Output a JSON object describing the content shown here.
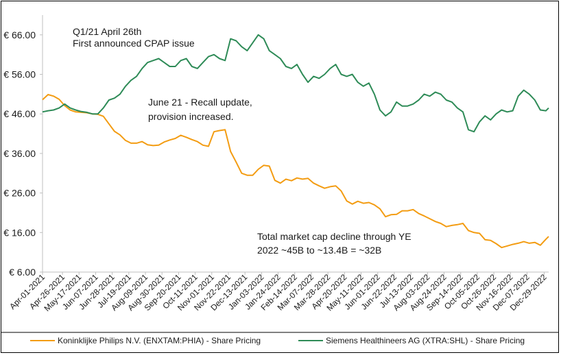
{
  "chart_data": {
    "type": "line",
    "ylim": [
      6,
      71
    ],
    "y_ticks": [
      6,
      16,
      26,
      36,
      46,
      56,
      66
    ],
    "y_tick_labels": [
      "€ 6.00",
      "€ 16.00",
      "€ 26.00",
      "€ 36.00",
      "€ 46.00",
      "€ 56.00",
      "€ 66.00"
    ],
    "x_tick_labels": [
      "Apr-01-2021",
      "Apr-26-2021",
      "May-17-2021",
      "Jun-07-2021",
      "Jun-28-2021",
      "Jul-19-2021",
      "Aug-09-2021",
      "Aug-30-2021",
      "Sep-20-2021",
      "Oct-11-2021",
      "Nov-01-2021",
      "Nov-22-2021",
      "Dec-13-2021",
      "Jan-03-2022",
      "Jan-24-2022",
      "Feb-14-2022",
      "Mar-07-2022",
      "Mar-28-2022",
      "Apr-20-2022",
      "May-11-2022",
      "Jun-01-2022",
      "Jun-22-2022",
      "Jul-13-2022",
      "Aug-03-2022",
      "Aug-24-2022",
      "Sep-14-2022",
      "Oct-05-2022",
      "Oct-26-2022",
      "Nov-16-2022",
      "Dec-07-2022",
      "Dec-29-2022"
    ],
    "x_weeks": [
      0,
      3.6,
      6.6,
      9.6,
      12.6,
      15.6,
      18.6,
      21.6,
      24.6,
      27.6,
      30.6,
      33.6,
      36.6,
      39.6,
      42.6,
      45.6,
      48.6,
      51.6,
      54.6,
      57.6,
      60.6,
      63.6,
      66.6,
      69.6,
      72.6,
      75.6,
      78.6,
      81.6,
      84.6,
      87.6,
      90.7
    ],
    "x_range": [
      0,
      91.5
    ],
    "series": [
      {
        "name": "Koninklijke Philips N.V. (ENXTAM:PHIA) - Share Pricing",
        "color": "#F39C12",
        "points": [
          [
            0,
            49.6
          ],
          [
            1,
            50.9
          ],
          [
            2,
            50.5
          ],
          [
            3,
            49.7
          ],
          [
            4,
            48.1
          ],
          [
            5,
            47.0
          ],
          [
            6,
            46.5
          ],
          [
            7,
            46.4
          ],
          [
            8,
            46.3
          ],
          [
            9,
            46.0
          ],
          [
            10,
            45.9
          ],
          [
            11,
            45.4
          ],
          [
            12,
            43.5
          ],
          [
            13,
            41.6
          ],
          [
            14,
            40.7
          ],
          [
            15,
            39.3
          ],
          [
            16,
            38.6
          ],
          [
            17,
            38.6
          ],
          [
            18,
            39.0
          ],
          [
            19,
            38.2
          ],
          [
            20,
            38.0
          ],
          [
            21,
            38.1
          ],
          [
            22,
            38.9
          ],
          [
            23,
            39.4
          ],
          [
            24,
            39.8
          ],
          [
            25,
            40.6
          ],
          [
            26,
            40.1
          ],
          [
            27,
            39.5
          ],
          [
            28,
            39.0
          ],
          [
            29,
            38.1
          ],
          [
            30,
            37.8
          ],
          [
            31,
            41.5
          ],
          [
            32,
            41.8
          ],
          [
            33,
            42.0
          ],
          [
            34,
            36.5
          ],
          [
            35,
            33.8
          ],
          [
            36,
            31.0
          ],
          [
            37,
            30.5
          ],
          [
            38,
            30.5
          ],
          [
            39,
            32.0
          ],
          [
            40,
            33.0
          ],
          [
            41,
            32.8
          ],
          [
            42,
            29.2
          ],
          [
            43,
            28.5
          ],
          [
            44,
            29.5
          ],
          [
            45,
            29.1
          ],
          [
            46,
            29.8
          ],
          [
            47,
            29.5
          ],
          [
            48,
            29.7
          ],
          [
            49,
            28.5
          ],
          [
            50,
            27.8
          ],
          [
            51,
            27.2
          ],
          [
            52,
            27.6
          ],
          [
            53,
            27.8
          ],
          [
            54,
            26.5
          ],
          [
            55,
            24.0
          ],
          [
            56,
            23.2
          ],
          [
            57,
            23.9
          ],
          [
            58,
            23.4
          ],
          [
            59,
            23.6
          ],
          [
            60,
            23.0
          ],
          [
            61,
            22.0
          ],
          [
            62,
            20.0
          ],
          [
            63,
            20.5
          ],
          [
            64,
            20.6
          ],
          [
            65,
            21.5
          ],
          [
            66,
            21.5
          ],
          [
            67,
            21.8
          ],
          [
            68,
            20.8
          ],
          [
            69,
            20.2
          ],
          [
            70,
            19.5
          ],
          [
            71,
            18.8
          ],
          [
            72,
            18.3
          ],
          [
            73,
            17.5
          ],
          [
            74,
            17.8
          ],
          [
            75,
            18.0
          ],
          [
            76,
            18.3
          ],
          [
            77,
            16.5
          ],
          [
            78,
            16.0
          ],
          [
            79,
            15.8
          ],
          [
            80,
            14.2
          ],
          [
            81,
            14.0
          ],
          [
            82,
            13.2
          ],
          [
            83,
            12.2
          ],
          [
            84,
            12.6
          ],
          [
            85,
            13.0
          ],
          [
            86,
            13.3
          ],
          [
            87,
            13.7
          ],
          [
            88,
            13.3
          ],
          [
            89,
            13.5
          ],
          [
            90,
            12.8
          ],
          [
            91,
            14.3
          ],
          [
            91.5,
            15.0
          ]
        ]
      },
      {
        "name": "Siemens Healthineers AG (XTRA:SHL) - Share Pricing",
        "color": "#2E8B57",
        "points": [
          [
            0,
            46.5
          ],
          [
            1,
            46.8
          ],
          [
            2,
            47.0
          ],
          [
            3,
            47.5
          ],
          [
            4,
            48.5
          ],
          [
            5,
            47.5
          ],
          [
            6,
            47.0
          ],
          [
            7,
            46.6
          ],
          [
            8,
            46.4
          ],
          [
            9,
            46.0
          ],
          [
            10,
            46.0
          ],
          [
            11,
            47.5
          ],
          [
            12,
            49.5
          ],
          [
            13,
            50.0
          ],
          [
            14,
            51.0
          ],
          [
            15,
            53.0
          ],
          [
            16,
            54.5
          ],
          [
            17,
            55.5
          ],
          [
            18,
            57.5
          ],
          [
            19,
            59.0
          ],
          [
            20,
            59.5
          ],
          [
            21,
            60.0
          ],
          [
            22,
            59.0
          ],
          [
            23,
            58.0
          ],
          [
            24,
            58.0
          ],
          [
            25,
            59.5
          ],
          [
            26,
            60.0
          ],
          [
            27,
            58.0
          ],
          [
            28,
            57.5
          ],
          [
            29,
            59.0
          ],
          [
            30,
            60.5
          ],
          [
            31,
            61.0
          ],
          [
            32,
            60.0
          ],
          [
            33,
            59.5
          ],
          [
            34,
            65.0
          ],
          [
            35,
            64.5
          ],
          [
            36,
            63.0
          ],
          [
            37,
            62.0
          ],
          [
            38,
            64.0
          ],
          [
            39,
            66.0
          ],
          [
            40,
            65.0
          ],
          [
            41,
            62.0
          ],
          [
            42,
            61.0
          ],
          [
            43,
            60.0
          ],
          [
            44,
            58.0
          ],
          [
            45,
            57.5
          ],
          [
            46,
            58.5
          ],
          [
            47,
            56.0
          ],
          [
            48,
            54.0
          ],
          [
            49,
            55.5
          ],
          [
            50,
            55.0
          ],
          [
            51,
            56.0
          ],
          [
            52,
            57.5
          ],
          [
            53,
            58.5
          ],
          [
            54,
            56.0
          ],
          [
            55,
            55.5
          ],
          [
            56,
            56.0
          ],
          [
            57,
            54.0
          ],
          [
            58,
            53.0
          ],
          [
            59,
            53.8
          ],
          [
            60,
            51.0
          ],
          [
            61,
            47.0
          ],
          [
            62,
            45.5
          ],
          [
            63,
            46.5
          ],
          [
            64,
            49.0
          ],
          [
            65,
            48.0
          ],
          [
            66,
            48.0
          ],
          [
            67,
            48.5
          ],
          [
            68,
            49.5
          ],
          [
            69,
            51.0
          ],
          [
            70,
            50.5
          ],
          [
            71,
            51.5
          ],
          [
            72,
            51.0
          ],
          [
            73,
            49.5
          ],
          [
            74,
            49.0
          ],
          [
            75,
            47.5
          ],
          [
            76,
            46.5
          ],
          [
            77,
            42.0
          ],
          [
            78,
            41.5
          ],
          [
            79,
            44.0
          ],
          [
            80,
            45.5
          ],
          [
            81,
            44.5
          ],
          [
            82,
            46.0
          ],
          [
            83,
            47.0
          ],
          [
            84,
            46.5
          ],
          [
            85,
            46.8
          ],
          [
            86,
            50.5
          ],
          [
            87,
            52.0
          ],
          [
            88,
            51.0
          ],
          [
            89,
            49.5
          ],
          [
            90,
            47.0
          ],
          [
            91,
            46.8
          ],
          [
            91.5,
            47.5
          ]
        ]
      }
    ],
    "annotations": [
      {
        "text": "Q1/21 April 26th"
      },
      {
        "text": "First announced CPAP issue"
      },
      {
        "text": "June 21 - Recall update,"
      },
      {
        "text": "provision increased."
      },
      {
        "text": "Total market cap decline through YE"
      },
      {
        "text": "2022 ~45B to ~13.4B = ~32B"
      }
    ],
    "legend": [
      {
        "label": "Koninklijke Philips N.V. (ENXTAM:PHIA) - Share Pricing",
        "color": "#F39C12"
      },
      {
        "label": "Siemens Healthineers AG (XTRA:SHL) - Share Pricing",
        "color": "#2E8B57"
      }
    ],
    "grid": false
  }
}
